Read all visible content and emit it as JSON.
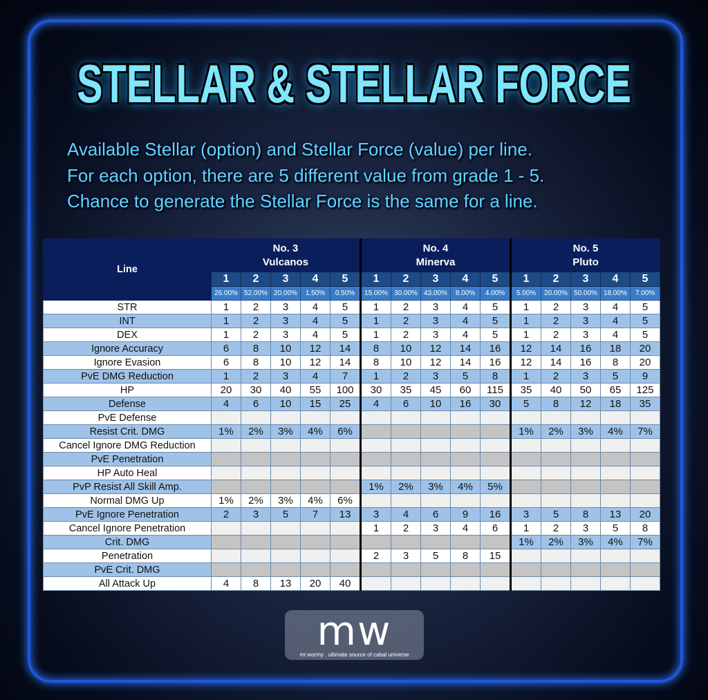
{
  "title": "STELLAR & STELLAR FORCE",
  "description": [
    "Available Stellar (option) and Stellar Force (value) per line.",
    "For each option, there are 5 different value from grade 1 - 5.",
    "Chance to generate the Stellar Force is the same for a line."
  ],
  "table": {
    "line_header": "Line",
    "groups": [
      {
        "no": "No. 3",
        "name": "Vulcanos",
        "grades": [
          "1",
          "2",
          "3",
          "4",
          "5"
        ],
        "chances": [
          "26.00%",
          "52.00%",
          "20.00%",
          "1.50%",
          "0.50%"
        ]
      },
      {
        "no": "No. 4",
        "name": "Minerva",
        "grades": [
          "1",
          "2",
          "3",
          "4",
          "5"
        ],
        "chances": [
          "15.00%",
          "30.00%",
          "43.00%",
          "8.00%",
          "4.00%"
        ]
      },
      {
        "no": "No. 5",
        "name": "Pluto",
        "grades": [
          "1",
          "2",
          "3",
          "4",
          "5"
        ],
        "chances": [
          "5.00%",
          "20.00%",
          "50.00%",
          "18.00%",
          "7.00%"
        ]
      }
    ],
    "rows": [
      {
        "option": "STR",
        "values": [
          [
            "1",
            "2",
            "3",
            "4",
            "5"
          ],
          [
            "1",
            "2",
            "3",
            "4",
            "5"
          ],
          [
            "1",
            "2",
            "3",
            "4",
            "5"
          ]
        ]
      },
      {
        "option": "INT",
        "values": [
          [
            "1",
            "2",
            "3",
            "4",
            "5"
          ],
          [
            "1",
            "2",
            "3",
            "4",
            "5"
          ],
          [
            "1",
            "2",
            "3",
            "4",
            "5"
          ]
        ]
      },
      {
        "option": "DEX",
        "values": [
          [
            "1",
            "2",
            "3",
            "4",
            "5"
          ],
          [
            "1",
            "2",
            "3",
            "4",
            "5"
          ],
          [
            "1",
            "2",
            "3",
            "4",
            "5"
          ]
        ]
      },
      {
        "option": "Ignore Accuracy",
        "values": [
          [
            "6",
            "8",
            "10",
            "12",
            "14"
          ],
          [
            "8",
            "10",
            "12",
            "14",
            "16"
          ],
          [
            "12",
            "14",
            "16",
            "18",
            "20"
          ]
        ]
      },
      {
        "option": "Ignore Evasion",
        "values": [
          [
            "6",
            "8",
            "10",
            "12",
            "14"
          ],
          [
            "8",
            "10",
            "12",
            "14",
            "16"
          ],
          [
            "12",
            "14",
            "16",
            "8",
            "20"
          ]
        ]
      },
      {
        "option": "PvE DMG Reduction",
        "values": [
          [
            "1",
            "2",
            "3",
            "4",
            "7"
          ],
          [
            "1",
            "2",
            "3",
            "5",
            "8"
          ],
          [
            "1",
            "2",
            "3",
            "5",
            "9"
          ]
        ]
      },
      {
        "option": "HP",
        "values": [
          [
            "20",
            "30",
            "40",
            "55",
            "100"
          ],
          [
            "30",
            "35",
            "45",
            "60",
            "115"
          ],
          [
            "35",
            "40",
            "50",
            "65",
            "125"
          ]
        ]
      },
      {
        "option": "Defense",
        "values": [
          [
            "4",
            "6",
            "10",
            "15",
            "25"
          ],
          [
            "4",
            "6",
            "10",
            "16",
            "30"
          ],
          [
            "5",
            "8",
            "12",
            "18",
            "35"
          ]
        ]
      },
      {
        "option": "PvE Defense",
        "values": [
          null,
          null,
          null
        ]
      },
      {
        "option": "Resist Crit. DMG",
        "values": [
          [
            "1%",
            "2%",
            "3%",
            "4%",
            "6%"
          ],
          null,
          [
            "1%",
            "2%",
            "3%",
            "4%",
            "7%"
          ]
        ]
      },
      {
        "option": "Cancel Ignore DMG Reduction",
        "values": [
          null,
          null,
          null
        ]
      },
      {
        "option": "PvE Penetration",
        "values": [
          null,
          null,
          null
        ]
      },
      {
        "option": "HP Auto Heal",
        "values": [
          null,
          null,
          null
        ]
      },
      {
        "option": "PvP Resist All Skill Amp.",
        "values": [
          null,
          [
            "1%",
            "2%",
            "3%",
            "4%",
            "5%"
          ],
          null
        ]
      },
      {
        "option": "Normal DMG Up",
        "values": [
          [
            "1%",
            "2%",
            "3%",
            "4%",
            "6%"
          ],
          null,
          null
        ]
      },
      {
        "option": "PvE Ignore Penetration",
        "values": [
          [
            "2",
            "3",
            "5",
            "7",
            "13"
          ],
          [
            "3",
            "4",
            "6",
            "9",
            "16"
          ],
          [
            "3",
            "5",
            "8",
            "13",
            "20"
          ]
        ]
      },
      {
        "option": "Cancel Ignore Penetration",
        "values": [
          null,
          [
            "1",
            "2",
            "3",
            "4",
            "6"
          ],
          [
            "1",
            "2",
            "3",
            "5",
            "8"
          ]
        ]
      },
      {
        "option": "Crit. DMG",
        "values": [
          null,
          null,
          [
            "1%",
            "2%",
            "3%",
            "4%",
            "7%"
          ]
        ]
      },
      {
        "option": "Penetration",
        "values": [
          null,
          [
            "2",
            "3",
            "5",
            "8",
            "15"
          ],
          null
        ]
      },
      {
        "option": "PvE Crit. DMG",
        "values": [
          null,
          null,
          null
        ]
      },
      {
        "option": "All Attack Up",
        "values": [
          [
            "4",
            "8",
            "13",
            "20",
            "40"
          ],
          null,
          null
        ]
      }
    ]
  },
  "logo": {
    "mark": "mw",
    "tagline": "mr.wormy . ultimate source of cabal universe"
  },
  "colors": {
    "accent": "#5fd4ff",
    "frame": "#1f56e0",
    "header": "#0a1e5c",
    "row_alt": "#9fc3e8"
  }
}
